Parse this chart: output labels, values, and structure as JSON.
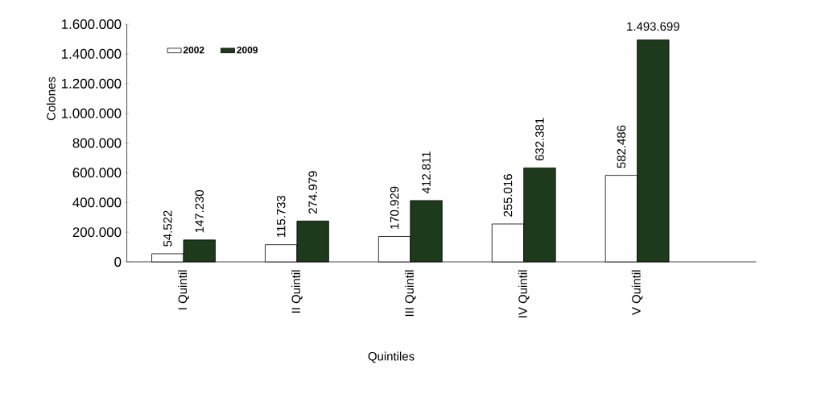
{
  "chart_data": {
    "type": "bar",
    "xlabel": "Quintiles",
    "ylabel": "Colones",
    "categories": [
      "I Quintil",
      "II Quintil",
      "III Quintil",
      "IV Quintil",
      "V Quintil"
    ],
    "series": [
      {
        "name": "2002",
        "color": "#ffffff",
        "values": [
          54522,
          115733,
          170929,
          255016,
          582486
        ],
        "value_labels": [
          "54.522",
          "115.733",
          "170.929",
          "255.016",
          "582.486"
        ]
      },
      {
        "name": "2009",
        "color": "#1e3a1c",
        "values": [
          147230,
          274979,
          412811,
          632381,
          1493699
        ],
        "value_labels": [
          "147.230",
          "274.979",
          "412.811",
          "632.381",
          "1.493.699"
        ]
      }
    ],
    "ylim": [
      0,
      1600000
    ],
    "yticks": [
      {
        "value": 0,
        "label": "0"
      },
      {
        "value": 200000,
        "label": "200.000"
      },
      {
        "value": 400000,
        "label": "400.000"
      },
      {
        "value": 600000,
        "label": "600.000"
      },
      {
        "value": 800000,
        "label": "800.000"
      },
      {
        "value": 1000000,
        "label": "1.000.000"
      },
      {
        "value": 1200000,
        "label": "1.200.000"
      },
      {
        "value": 1400000,
        "label": "1.400.000"
      },
      {
        "value": 1600000,
        "label": "1.600.000"
      }
    ],
    "grid": false,
    "legend": "top left"
  }
}
